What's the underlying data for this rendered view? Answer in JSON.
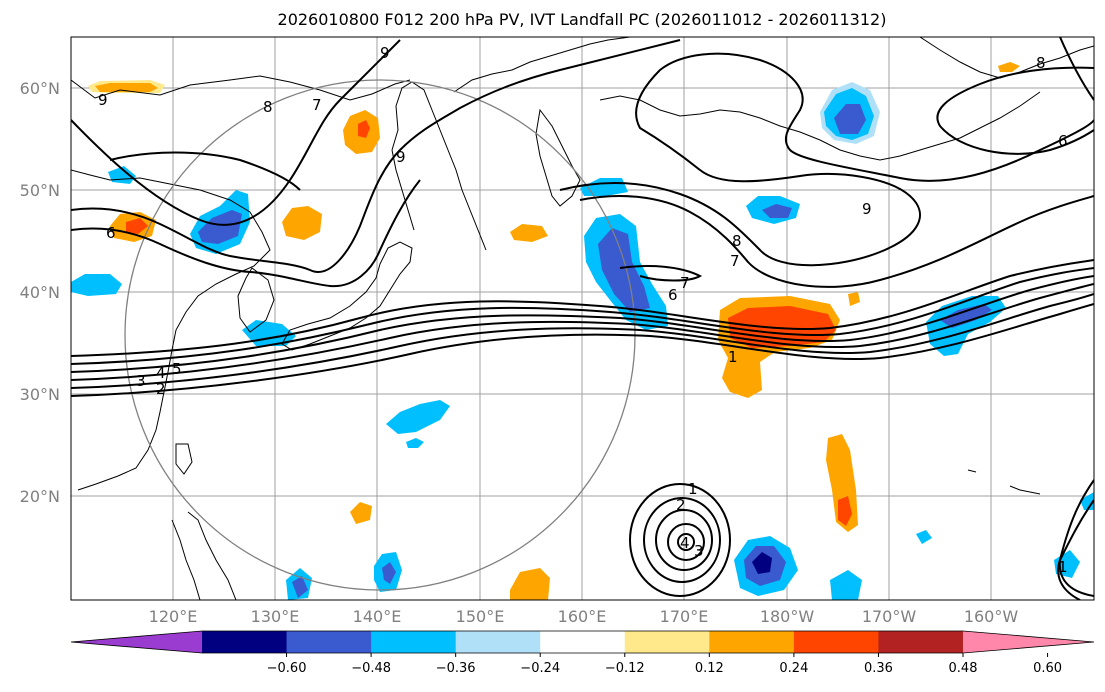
{
  "title": "2026010800 F012 200 hPa PV, IVT Landfall PC (2026011012 - 2026011312)",
  "map": {
    "lon_labels": [
      "120°E",
      "130°E",
      "140°E",
      "150°E",
      "160°E",
      "170°E",
      "180°W",
      "170°W",
      "160°W"
    ],
    "lat_labels": [
      "60°N",
      "50°N",
      "40°N",
      "30°N",
      "20°N"
    ],
    "contour_labels": [
      "9",
      "8",
      "7",
      "6",
      "5",
      "4",
      "3",
      "2",
      "1"
    ],
    "colors": {
      "coast": "#000000",
      "grid": "#a0a0a0",
      "circle": "#808080",
      "contour": "#000000"
    }
  },
  "colorbar": {
    "ticks": [
      "−0.60",
      "−0.48",
      "−0.36",
      "−0.24",
      "−0.12",
      "0.12",
      "0.24",
      "0.36",
      "0.48",
      "0.60"
    ],
    "colors": [
      "#9a3cd0",
      "#000080",
      "#3a5ad0",
      "#00bfff",
      "#b0e0f8",
      "#ffffff",
      "#ffe98a",
      "#ffa500",
      "#ff4500",
      "#b22222",
      "#ff88aa"
    ]
  }
}
